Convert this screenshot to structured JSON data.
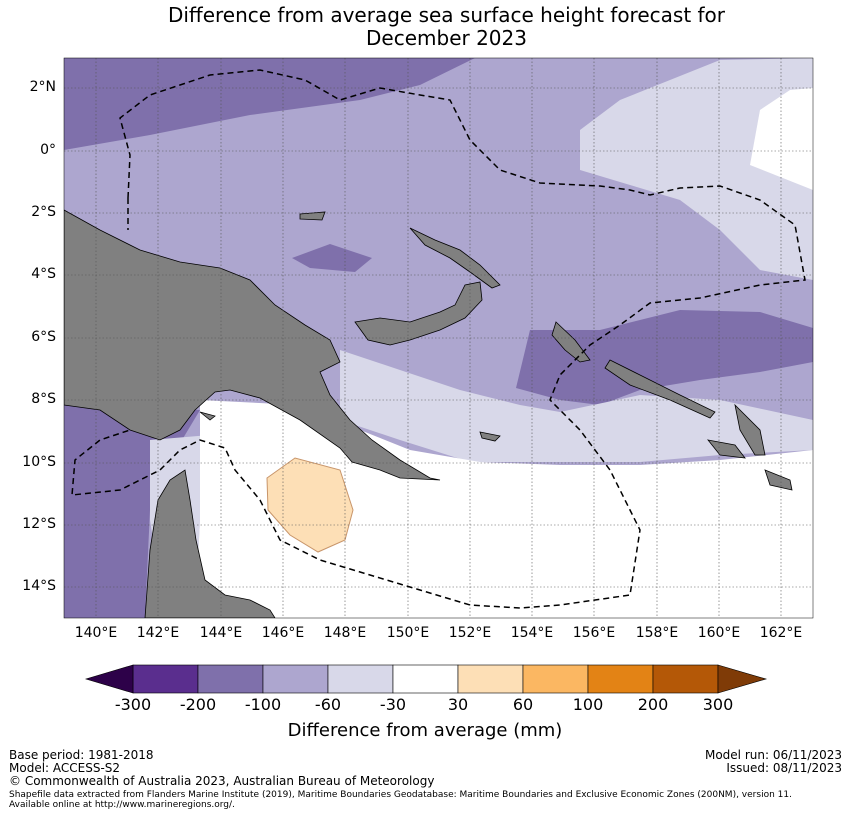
{
  "title": {
    "line1": "Difference from average sea surface height forecast for",
    "line2": "December 2023"
  },
  "map": {
    "lat_labels": [
      "2°N",
      "0°",
      "2°S",
      "4°S",
      "6°S",
      "8°S",
      "10°S",
      "12°S",
      "14°S"
    ],
    "lon_labels": [
      "140°E",
      "142°E",
      "144°E",
      "146°E",
      "148°E",
      "150°E",
      "152°E",
      "154°E",
      "156°E",
      "158°E",
      "160°E",
      "162°E"
    ],
    "colors": {
      "land": "#808080",
      "band_strong_neg": "#7f70ab",
      "band_mid_neg": "#ada6cf",
      "band_light_neg": "#d8d8e9",
      "band_neutral": "#ffffff",
      "band_light_pos": "#fddfb6"
    }
  },
  "colorbar": {
    "ticks": [
      "-300",
      "-200",
      "-100",
      "-60",
      "-30",
      "30",
      "60",
      "100",
      "200",
      "300"
    ],
    "colors": [
      "#5a2e8e",
      "#7f70ab",
      "#ada6cf",
      "#d8d8e9",
      "#ffffff",
      "#fddfb6",
      "#fbb762",
      "#e38315",
      "#b45807"
    ],
    "under_color": "#2d0149",
    "over_color": "#7f3b07",
    "label": "Difference from average (mm)"
  },
  "footer": {
    "base_period": "Base period: 1981-2018",
    "model": "Model: ACCESS-S2",
    "model_run": "Model run: 06/11/2023",
    "issued": "Issued: 08/11/2023",
    "copyright": "© Commonwealth of Australia 2023, Australian Bureau of Meteorology",
    "shapefile_line1": "Shapefile data extracted from Flanders Marine Institute (2019), Maritime Boundaries Geodatabase: Maritime Boundaries and Exclusive Economic Zones (200NM), version 11.",
    "shapefile_line2": "Available online at http://www.marineregions.org/."
  }
}
